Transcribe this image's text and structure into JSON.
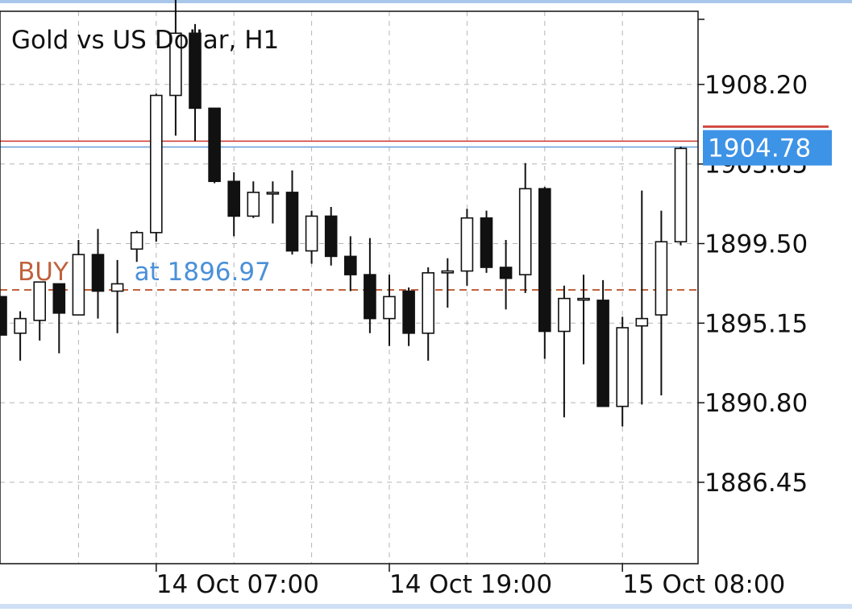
{
  "chart_data": {
    "type": "candlestick",
    "title": "Gold vs US Dollar, H1",
    "symbol": "Gold vs US Dollar",
    "timeframe": "H1",
    "price_ticks": [
      1908.2,
      1903.85,
      1899.5,
      1895.15,
      1890.8,
      1886.45
    ],
    "price_tick_labels": [
      "1908.20",
      "1903.85",
      "1899.50",
      "1895.15",
      "1890.80",
      "1886.45"
    ],
    "time_ticks": [
      {
        "label": "14 Oct 07:00",
        "index": 8
      },
      {
        "label": "14 Oct 19:00",
        "index": 20
      },
      {
        "label": "15 Oct 08:00",
        "index": 32
      }
    ],
    "ylim": [
      1882.0,
      1912.2
    ],
    "grid": true,
    "current_price": 1904.78,
    "current_price_label": "1904.78",
    "ask_price": 1905.1,
    "order_line": {
      "text": "BUY at 1896.97",
      "side": "BUY",
      "price": 1896.97,
      "prefix": "BUY",
      "suffix": "at 1896.97"
    },
    "candles": [
      {
        "o": 1896.6,
        "h": 1896.6,
        "l": 1894.5,
        "c": 1894.5
      },
      {
        "o": 1894.6,
        "h": 1895.8,
        "l": 1893.1,
        "c": 1895.4
      },
      {
        "o": 1895.3,
        "h": 1897.4,
        "l": 1894.2,
        "c": 1897.4
      },
      {
        "o": 1897.3,
        "h": 1897.3,
        "l": 1893.5,
        "c": 1895.7
      },
      {
        "o": 1895.6,
        "h": 1899.7,
        "l": 1895.6,
        "c": 1898.9
      },
      {
        "o": 1898.9,
        "h": 1900.3,
        "l": 1895.4,
        "c": 1896.9
      },
      {
        "o": 1896.9,
        "h": 1898.6,
        "l": 1894.6,
        "c": 1897.3
      },
      {
        "o": 1899.2,
        "h": 1900.2,
        "l": 1898.5,
        "c": 1900.1
      },
      {
        "o": 1900.1,
        "h": 1907.7,
        "l": 1899.6,
        "c": 1907.6
      },
      {
        "o": 1907.6,
        "h": 1913.0,
        "l": 1905.4,
        "c": 1911.0
      },
      {
        "o": 1911.0,
        "h": 1911.5,
        "l": 1905.1,
        "c": 1906.9
      },
      {
        "o": 1906.9,
        "h": 1906.9,
        "l": 1902.8,
        "c": 1902.9
      },
      {
        "o": 1902.9,
        "h": 1903.4,
        "l": 1899.9,
        "c": 1901.0
      },
      {
        "o": 1901.0,
        "h": 1902.9,
        "l": 1900.9,
        "c": 1902.3
      },
      {
        "o": 1902.3,
        "h": 1902.9,
        "l": 1900.6,
        "c": 1902.3
      },
      {
        "o": 1902.3,
        "h": 1903.5,
        "l": 1898.9,
        "c": 1899.1
      },
      {
        "o": 1899.1,
        "h": 1901.3,
        "l": 1898.4,
        "c": 1901.0
      },
      {
        "o": 1901.0,
        "h": 1901.5,
        "l": 1898.3,
        "c": 1898.8
      },
      {
        "o": 1898.8,
        "h": 1899.9,
        "l": 1896.9,
        "c": 1897.8
      },
      {
        "o": 1897.8,
        "h": 1899.8,
        "l": 1894.6,
        "c": 1895.4
      },
      {
        "o": 1895.4,
        "h": 1897.8,
        "l": 1893.9,
        "c": 1896.6
      },
      {
        "o": 1896.9,
        "h": 1897.1,
        "l": 1893.9,
        "c": 1894.6
      },
      {
        "o": 1894.6,
        "h": 1898.2,
        "l": 1893.1,
        "c": 1897.9
      },
      {
        "o": 1897.9,
        "h": 1898.7,
        "l": 1896.0,
        "c": 1898.0
      },
      {
        "o": 1898.0,
        "h": 1901.4,
        "l": 1897.2,
        "c": 1900.9
      },
      {
        "o": 1900.9,
        "h": 1901.3,
        "l": 1897.9,
        "c": 1898.2
      },
      {
        "o": 1898.2,
        "h": 1899.7,
        "l": 1895.9,
        "c": 1897.6
      },
      {
        "o": 1897.8,
        "h": 1903.9,
        "l": 1896.8,
        "c": 1902.5
      },
      {
        "o": 1902.5,
        "h": 1902.6,
        "l": 1893.2,
        "c": 1894.7
      },
      {
        "o": 1894.7,
        "h": 1897.2,
        "l": 1890.0,
        "c": 1896.5
      },
      {
        "o": 1896.5,
        "h": 1897.8,
        "l": 1892.9,
        "c": 1896.5
      },
      {
        "o": 1896.4,
        "h": 1897.5,
        "l": 1890.6,
        "c": 1890.6
      },
      {
        "o": 1890.6,
        "h": 1895.5,
        "l": 1889.5,
        "c": 1894.9
      },
      {
        "o": 1895.0,
        "h": 1902.4,
        "l": 1890.7,
        "c": 1895.4
      },
      {
        "o": 1895.6,
        "h": 1901.3,
        "l": 1891.2,
        "c": 1899.6
      },
      {
        "o": 1899.6,
        "h": 1904.8,
        "l": 1899.4,
        "c": 1904.7
      }
    ]
  }
}
